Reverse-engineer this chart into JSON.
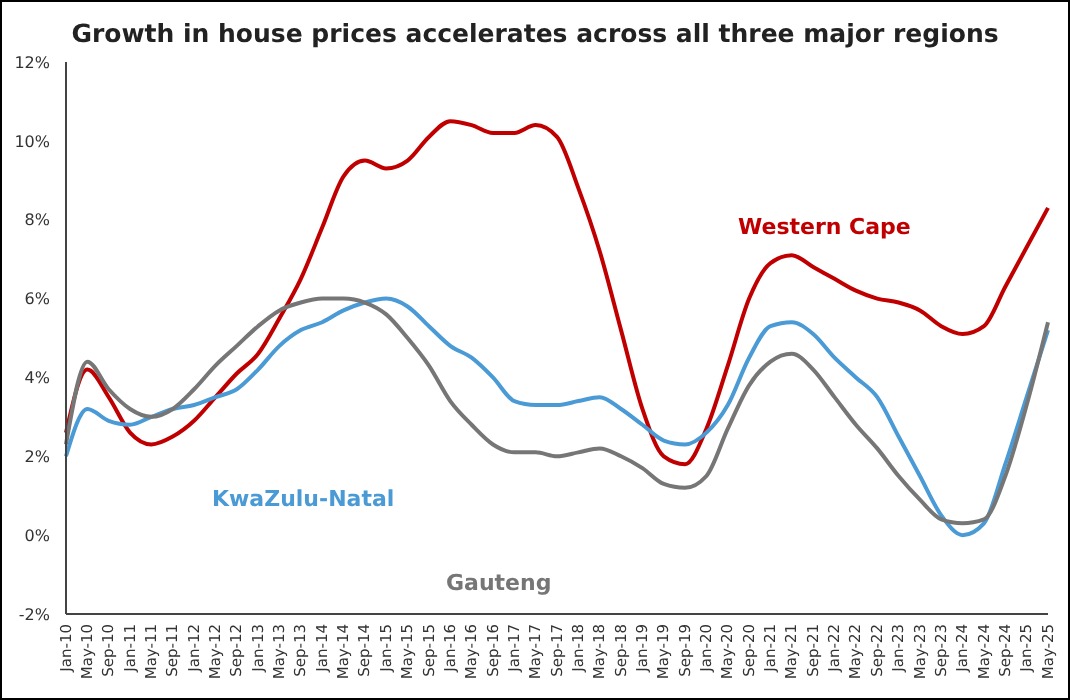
{
  "chart_data": {
    "type": "line",
    "title": "Growth in house prices accelerates across all three major regions",
    "categories": [
      "Jan-10",
      "May-10",
      "Sep-10",
      "Jan-11",
      "May-11",
      "Sep-11",
      "Jan-12",
      "May-12",
      "Sep-12",
      "Jan-13",
      "May-13",
      "Sep-13",
      "Jan-14",
      "May-14",
      "Sep-14",
      "Jan-15",
      "May-15",
      "Sep-15",
      "Jan-16",
      "May-16",
      "Sep-16",
      "Jan-17",
      "May-17",
      "Sep-17",
      "Jan-18",
      "May-18",
      "Sep-18",
      "Jan-19",
      "May-19",
      "Sep-19",
      "Jan-20",
      "May-20",
      "Sep-20",
      "Jan-21",
      "May-21",
      "Sep-21",
      "Jan-22",
      "May-22",
      "Sep-22",
      "Jan-23",
      "May-23",
      "Sep-23",
      "Jan-24",
      "May-24",
      "Sep-24",
      "Jan-25",
      "May-25"
    ],
    "series": [
      {
        "name": "Western Cape",
        "color": "#c00000",
        "values": [
          2.6,
          4.2,
          3.5,
          2.6,
          2.3,
          2.5,
          2.9,
          3.5,
          4.1,
          4.6,
          5.5,
          6.5,
          7.8,
          9.1,
          9.5,
          9.3,
          9.5,
          10.1,
          10.5,
          10.4,
          10.2,
          10.2,
          10.4,
          10.1,
          8.8,
          7.2,
          5.2,
          3.2,
          2.0,
          1.8,
          2.7,
          4.3,
          6.0,
          6.9,
          7.1,
          6.8,
          6.5,
          6.2,
          6.0,
          5.9,
          5.7,
          5.3,
          5.1,
          5.3,
          6.3,
          7.3,
          8.3
        ]
      },
      {
        "name": "KwaZulu-Natal",
        "color": "#4a9ad6",
        "values": [
          2.0,
          3.2,
          2.9,
          2.8,
          3.0,
          3.2,
          3.3,
          3.5,
          3.7,
          4.2,
          4.8,
          5.2,
          5.4,
          5.7,
          5.9,
          6.0,
          5.8,
          5.3,
          4.8,
          4.5,
          4.0,
          3.4,
          3.3,
          3.3,
          3.4,
          3.5,
          3.2,
          2.8,
          2.4,
          2.3,
          2.6,
          3.3,
          4.5,
          5.3,
          5.4,
          5.1,
          4.5,
          4.0,
          3.5,
          2.5,
          1.5,
          0.5,
          0.0,
          0.3,
          1.8,
          3.5,
          5.2
        ]
      },
      {
        "name": "Gauteng",
        "color": "#767676",
        "values": [
          2.3,
          4.4,
          3.7,
          3.2,
          3.0,
          3.2,
          3.7,
          4.3,
          4.8,
          5.3,
          5.7,
          5.9,
          6.0,
          6.0,
          5.9,
          5.6,
          5.0,
          4.3,
          3.4,
          2.8,
          2.3,
          2.1,
          2.1,
          2.0,
          2.1,
          2.2,
          2.0,
          1.7,
          1.3,
          1.2,
          1.5,
          2.7,
          3.8,
          4.4,
          4.6,
          4.2,
          3.5,
          2.8,
          2.2,
          1.5,
          0.9,
          0.4,
          0.3,
          0.4,
          1.5,
          3.3,
          5.4
        ]
      }
    ],
    "ylim": [
      -2,
      12
    ],
    "yticks": [
      {
        "value": -2,
        "label": "-2%"
      },
      {
        "value": 0,
        "label": "0%"
      },
      {
        "value": 2,
        "label": "2%"
      },
      {
        "value": 4,
        "label": "4%"
      },
      {
        "value": 6,
        "label": "6%"
      },
      {
        "value": 8,
        "label": "8%"
      },
      {
        "value": 10,
        "label": "10%"
      },
      {
        "value": 12,
        "label": "12%"
      }
    ],
    "grid": false,
    "legend": false,
    "marker": "none",
    "line_style": "solid"
  }
}
